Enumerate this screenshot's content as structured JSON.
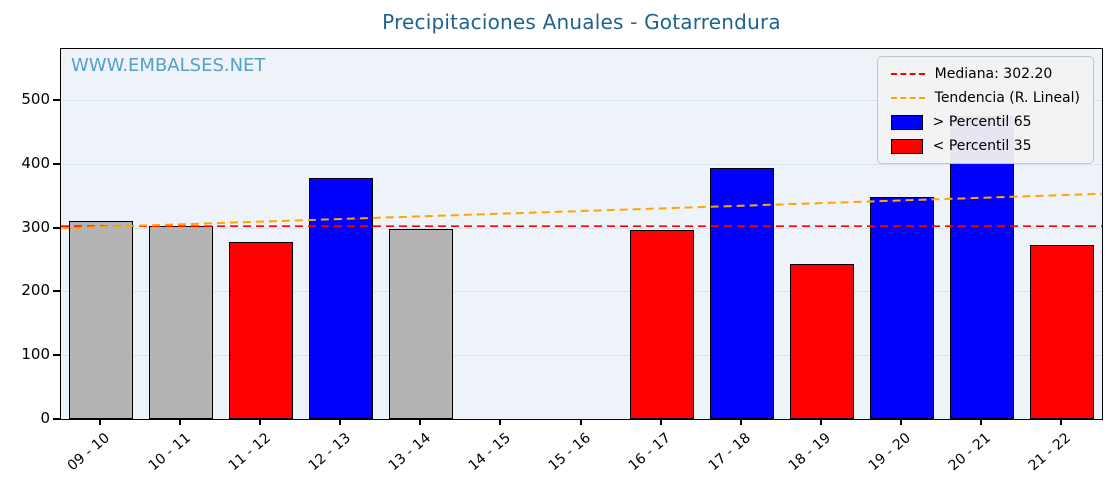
{
  "watermark": "WWW.EMBALSES.NET",
  "colors": {
    "title": "#20638f",
    "watermark": "#56a0c8",
    "plot_background": "#edf3f8",
    "gridline": "#d9e3ee",
    "above": "#0000ff",
    "below": "#ff0000",
    "mid": "#b4b4b4",
    "bar_edge": "#000000",
    "median_line": "#ff0000",
    "trend_line": "#ffa500"
  },
  "chart_data": {
    "type": "bar",
    "title": "Precipitaciones Anuales - Gotarrendura",
    "categories": [
      "09 - 10",
      "10 - 11",
      "11 - 12",
      "12 - 13",
      "13 - 14",
      "14 - 15",
      "15 - 16",
      "16 - 17",
      "17 - 18",
      "18 - 19",
      "19 - 20",
      "20 - 21",
      "21 - 22"
    ],
    "values": [
      310,
      303,
      277,
      378,
      298,
      null,
      null,
      297,
      393,
      243,
      348,
      475,
      273
    ],
    "bar_color_keys": [
      "mid",
      "mid",
      "below",
      "above",
      "mid",
      null,
      null,
      "below",
      "above",
      "below",
      "above",
      "above",
      "below"
    ],
    "median": 302.2,
    "trend_line": {
      "start_value": 299,
      "end_value": 353
    },
    "ylim": [
      0,
      580
    ],
    "yticks": [
      0,
      100,
      200,
      300,
      400,
      500
    ],
    "grid": true,
    "xlabel": "",
    "ylabel": "",
    "legend": {
      "position": "upper right",
      "median_label": "Mediana: 302.20",
      "trend_label": "Tendencia (R. Lineal)",
      "above_label": "> Percentil 65",
      "below_label": "< Percentil 35"
    }
  }
}
